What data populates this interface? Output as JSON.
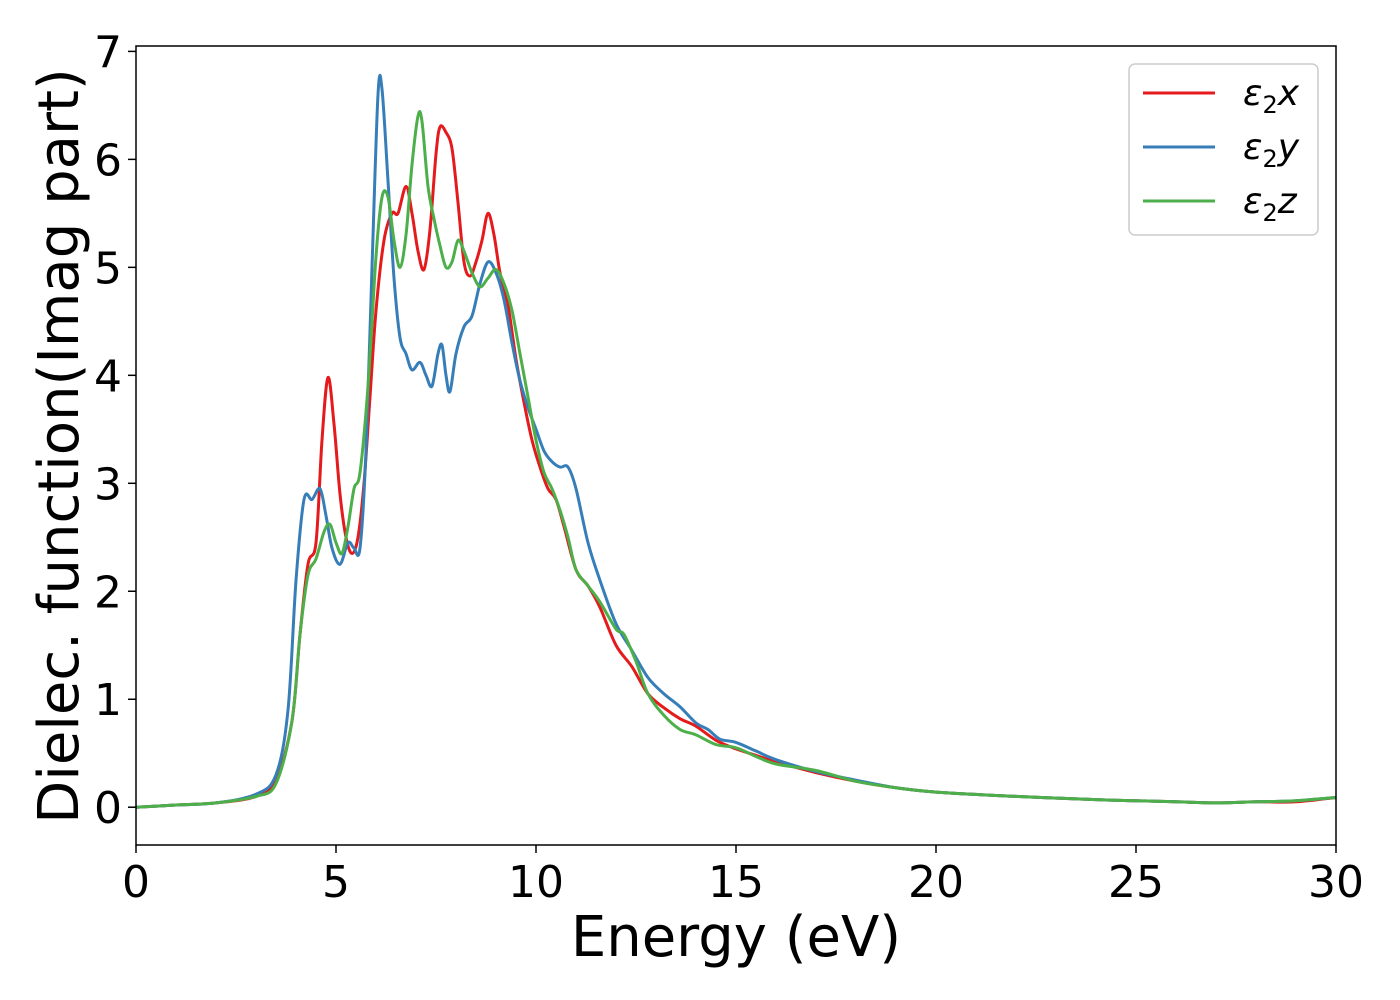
{
  "chart_data": {
    "type": "line",
    "xlabel": "Energy (eV)",
    "ylabel": "Dielec. function(Imag part)",
    "xlim": [
      0,
      30
    ],
    "ylim": [
      -0.35,
      7.05
    ],
    "xticks": [
      0,
      5,
      10,
      15,
      20,
      25,
      30
    ],
    "xtick_labels": [
      "0",
      "5",
      "10",
      "15",
      "20",
      "25",
      "30"
    ],
    "yticks": [
      0,
      1,
      2,
      3,
      4,
      5,
      6,
      7
    ],
    "ytick_labels": [
      "0",
      "1",
      "2",
      "3",
      "4",
      "5",
      "6",
      "7"
    ],
    "grid": false,
    "legend_position": "top-right",
    "series": [
      {
        "name": "ε₂x",
        "legend_main": "ε",
        "legend_sub": "2",
        "legend_suffix": "x",
        "color": "#e41a1c",
        "points": [
          [
            0,
            0
          ],
          [
            1,
            0.02
          ],
          [
            2,
            0.04
          ],
          [
            3,
            0.1
          ],
          [
            3.5,
            0.25
          ],
          [
            3.9,
            0.8
          ],
          [
            4.1,
            1.6
          ],
          [
            4.3,
            2.25
          ],
          [
            4.5,
            2.45
          ],
          [
            4.65,
            3.4
          ],
          [
            4.8,
            3.98
          ],
          [
            4.95,
            3.55
          ],
          [
            5.1,
            2.9
          ],
          [
            5.25,
            2.5
          ],
          [
            5.4,
            2.35
          ],
          [
            5.55,
            2.5
          ],
          [
            5.7,
            3.0
          ],
          [
            5.85,
            3.8
          ],
          [
            6.0,
            4.6
          ],
          [
            6.2,
            5.25
          ],
          [
            6.4,
            5.5
          ],
          [
            6.55,
            5.5
          ],
          [
            6.75,
            5.75
          ],
          [
            6.9,
            5.5
          ],
          [
            7.05,
            5.15
          ],
          [
            7.2,
            4.98
          ],
          [
            7.35,
            5.35
          ],
          [
            7.5,
            6.05
          ],
          [
            7.6,
            6.3
          ],
          [
            7.75,
            6.25
          ],
          [
            7.9,
            6.1
          ],
          [
            8.05,
            5.6
          ],
          [
            8.2,
            5.05
          ],
          [
            8.35,
            4.92
          ],
          [
            8.5,
            5.05
          ],
          [
            8.65,
            5.25
          ],
          [
            8.8,
            5.5
          ],
          [
            8.95,
            5.3
          ],
          [
            9.1,
            4.95
          ],
          [
            9.3,
            4.65
          ],
          [
            9.5,
            4.15
          ],
          [
            9.7,
            3.75
          ],
          [
            9.9,
            3.4
          ],
          [
            10.1,
            3.15
          ],
          [
            10.3,
            2.95
          ],
          [
            10.5,
            2.85
          ],
          [
            10.7,
            2.6
          ],
          [
            11.0,
            2.2
          ],
          [
            11.3,
            2.05
          ],
          [
            11.6,
            1.85
          ],
          [
            12.0,
            1.5
          ],
          [
            12.4,
            1.3
          ],
          [
            12.8,
            1.05
          ],
          [
            13.2,
            0.92
          ],
          [
            13.6,
            0.82
          ],
          [
            14.0,
            0.75
          ],
          [
            14.5,
            0.62
          ],
          [
            15.0,
            0.54
          ],
          [
            15.5,
            0.48
          ],
          [
            16.0,
            0.42
          ],
          [
            17.0,
            0.32
          ],
          [
            18.0,
            0.24
          ],
          [
            19.0,
            0.18
          ],
          [
            20.0,
            0.14
          ],
          [
            22.0,
            0.1
          ],
          [
            24.0,
            0.07
          ],
          [
            25.0,
            0.06
          ],
          [
            26.0,
            0.05
          ],
          [
            27.0,
            0.04
          ],
          [
            28.0,
            0.05
          ],
          [
            29.0,
            0.05
          ],
          [
            30.0,
            0.09
          ]
        ]
      },
      {
        "name": "ε₂y",
        "legend_main": "ε",
        "legend_sub": "2",
        "legend_suffix": "y",
        "color": "#377eb8",
        "points": [
          [
            0,
            0
          ],
          [
            1,
            0.02
          ],
          [
            2,
            0.04
          ],
          [
            3,
            0.12
          ],
          [
            3.5,
            0.3
          ],
          [
            3.8,
            0.9
          ],
          [
            4.0,
            2.1
          ],
          [
            4.2,
            2.85
          ],
          [
            4.4,
            2.85
          ],
          [
            4.6,
            2.95
          ],
          [
            4.75,
            2.7
          ],
          [
            4.9,
            2.4
          ],
          [
            5.1,
            2.25
          ],
          [
            5.3,
            2.45
          ],
          [
            5.45,
            2.4
          ],
          [
            5.6,
            2.4
          ],
          [
            5.75,
            3.3
          ],
          [
            5.9,
            5.0
          ],
          [
            6.05,
            6.6
          ],
          [
            6.15,
            6.65
          ],
          [
            6.3,
            5.8
          ],
          [
            6.45,
            4.9
          ],
          [
            6.6,
            4.35
          ],
          [
            6.75,
            4.2
          ],
          [
            6.9,
            4.05
          ],
          [
            7.1,
            4.12
          ],
          [
            7.25,
            4.0
          ],
          [
            7.4,
            3.9
          ],
          [
            7.55,
            4.2
          ],
          [
            7.65,
            4.28
          ],
          [
            7.75,
            4.0
          ],
          [
            7.85,
            3.85
          ],
          [
            8.0,
            4.2
          ],
          [
            8.2,
            4.45
          ],
          [
            8.4,
            4.55
          ],
          [
            8.6,
            4.85
          ],
          [
            8.8,
            5.05
          ],
          [
            9.0,
            4.95
          ],
          [
            9.2,
            4.7
          ],
          [
            9.4,
            4.3
          ],
          [
            9.6,
            3.95
          ],
          [
            9.8,
            3.7
          ],
          [
            10.0,
            3.5
          ],
          [
            10.2,
            3.3
          ],
          [
            10.4,
            3.2
          ],
          [
            10.6,
            3.15
          ],
          [
            10.8,
            3.15
          ],
          [
            11.0,
            2.95
          ],
          [
            11.3,
            2.45
          ],
          [
            11.6,
            2.1
          ],
          [
            12.0,
            1.7
          ],
          [
            12.4,
            1.45
          ],
          [
            12.8,
            1.2
          ],
          [
            13.2,
            1.05
          ],
          [
            13.6,
            0.93
          ],
          [
            14.0,
            0.78
          ],
          [
            14.3,
            0.72
          ],
          [
            14.6,
            0.63
          ],
          [
            15.0,
            0.6
          ],
          [
            15.5,
            0.52
          ],
          [
            16.0,
            0.44
          ],
          [
            17.0,
            0.33
          ],
          [
            18.0,
            0.25
          ],
          [
            19.0,
            0.18
          ],
          [
            20.0,
            0.14
          ],
          [
            22.0,
            0.1
          ],
          [
            24.0,
            0.07
          ],
          [
            25.0,
            0.06
          ],
          [
            26.0,
            0.05
          ],
          [
            27.0,
            0.04
          ],
          [
            28.0,
            0.05
          ],
          [
            29.0,
            0.06
          ],
          [
            30.0,
            0.09
          ]
        ]
      },
      {
        "name": "ε₂z",
        "legend_main": "ε",
        "legend_sub": "2",
        "legend_suffix": "z",
        "color": "#4daf4a",
        "points": [
          [
            0,
            0
          ],
          [
            1,
            0.02
          ],
          [
            2,
            0.04
          ],
          [
            3,
            0.1
          ],
          [
            3.5,
            0.22
          ],
          [
            3.9,
            0.8
          ],
          [
            4.1,
            1.6
          ],
          [
            4.3,
            2.15
          ],
          [
            4.5,
            2.3
          ],
          [
            4.7,
            2.55
          ],
          [
            4.85,
            2.62
          ],
          [
            5.0,
            2.45
          ],
          [
            5.15,
            2.35
          ],
          [
            5.3,
            2.6
          ],
          [
            5.45,
            2.95
          ],
          [
            5.6,
            3.1
          ],
          [
            5.8,
            3.9
          ],
          [
            6.0,
            5.1
          ],
          [
            6.15,
            5.65
          ],
          [
            6.3,
            5.65
          ],
          [
            6.45,
            5.25
          ],
          [
            6.6,
            5.0
          ],
          [
            6.75,
            5.3
          ],
          [
            6.9,
            5.95
          ],
          [
            7.05,
            6.4
          ],
          [
            7.15,
            6.35
          ],
          [
            7.3,
            5.75
          ],
          [
            7.45,
            5.45
          ],
          [
            7.6,
            5.2
          ],
          [
            7.75,
            5.0
          ],
          [
            7.9,
            5.05
          ],
          [
            8.05,
            5.25
          ],
          [
            8.2,
            5.15
          ],
          [
            8.4,
            4.95
          ],
          [
            8.6,
            4.82
          ],
          [
            8.8,
            4.9
          ],
          [
            9.0,
            4.98
          ],
          [
            9.2,
            4.85
          ],
          [
            9.4,
            4.6
          ],
          [
            9.6,
            4.2
          ],
          [
            9.8,
            3.8
          ],
          [
            10.0,
            3.4
          ],
          [
            10.2,
            3.1
          ],
          [
            10.4,
            2.95
          ],
          [
            10.6,
            2.75
          ],
          [
            10.8,
            2.5
          ],
          [
            11.0,
            2.2
          ],
          [
            11.3,
            2.05
          ],
          [
            11.6,
            1.9
          ],
          [
            12.0,
            1.65
          ],
          [
            12.2,
            1.6
          ],
          [
            12.5,
            1.35
          ],
          [
            12.8,
            1.05
          ],
          [
            13.2,
            0.85
          ],
          [
            13.6,
            0.72
          ],
          [
            14.0,
            0.67
          ],
          [
            14.5,
            0.58
          ],
          [
            15.0,
            0.55
          ],
          [
            15.5,
            0.47
          ],
          [
            16.0,
            0.4
          ],
          [
            17.0,
            0.34
          ],
          [
            18.0,
            0.24
          ],
          [
            19.0,
            0.18
          ],
          [
            20.0,
            0.14
          ],
          [
            22.0,
            0.1
          ],
          [
            24.0,
            0.07
          ],
          [
            25.0,
            0.06
          ],
          [
            26.0,
            0.05
          ],
          [
            27.0,
            0.04
          ],
          [
            28.0,
            0.05
          ],
          [
            29.0,
            0.06
          ],
          [
            30.0,
            0.09
          ]
        ]
      }
    ]
  }
}
